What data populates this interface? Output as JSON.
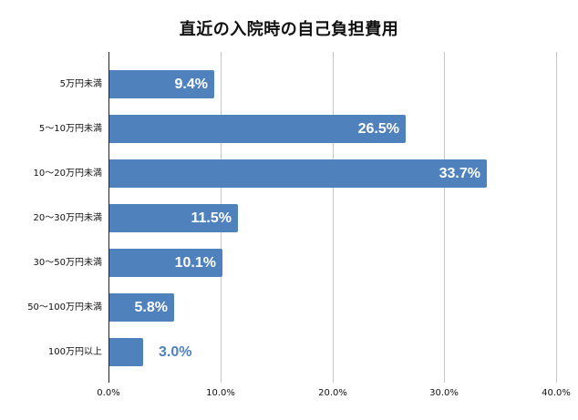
{
  "chart_data": {
    "type": "bar",
    "orientation": "horizontal",
    "title": "直近の入院時の自己負担費用",
    "xlabel": "",
    "ylabel": "",
    "categories": [
      "5万円未満",
      "5～10万円未満",
      "10～20万円未満",
      "20～30万円未満",
      "30～50万円未満",
      "50～100万円未満",
      "100万円以上"
    ],
    "values": [
      9.4,
      26.5,
      33.7,
      11.5,
      10.1,
      5.8,
      3.0
    ],
    "value_labels": [
      "9.4%",
      "26.5%",
      "33.7%",
      "11.5%",
      "10.1%",
      "5.8%",
      "3.0%"
    ],
    "xlim": [
      0,
      40
    ],
    "x_ticks": [
      "0.0%",
      "10.0%",
      "20.0%",
      "30.0%",
      "40.0%"
    ],
    "grid": "vertical",
    "legend": "none",
    "bar_color": "#4f81bd"
  }
}
